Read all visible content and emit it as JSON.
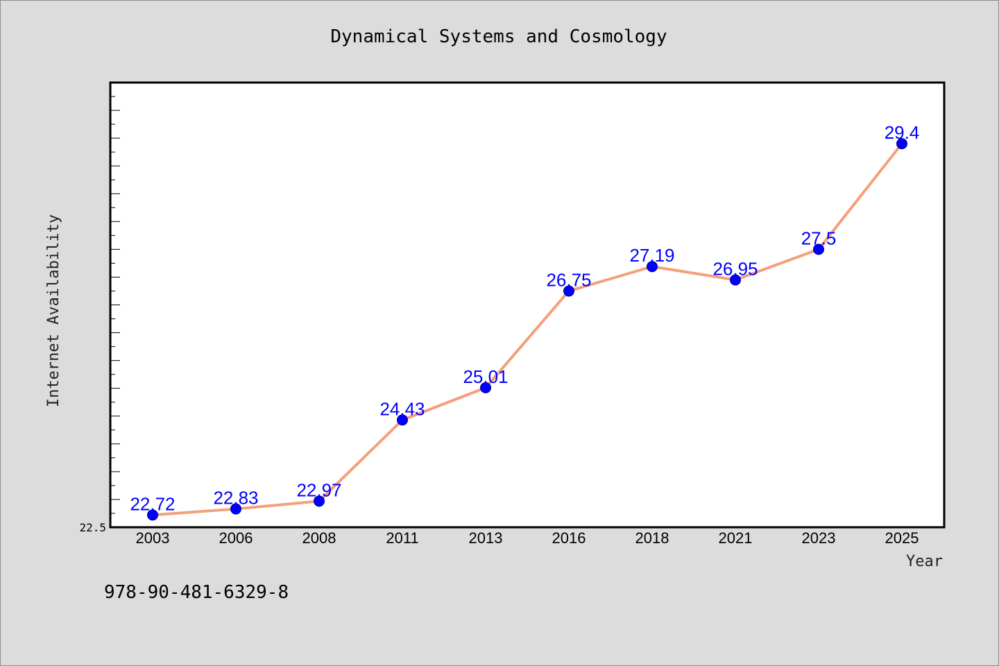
{
  "chart_data": {
    "type": "line",
    "title": "Dynamical Systems and Cosmology",
    "xlabel": "Year",
    "ylabel": "Internet Availability",
    "categories": [
      "2003",
      "2006",
      "2008",
      "2011",
      "2013",
      "2016",
      "2018",
      "2021",
      "2023",
      "2025"
    ],
    "values": [
      22.72,
      22.83,
      22.97,
      24.43,
      25.01,
      26.75,
      27.19,
      26.95,
      27.5,
      29.4
    ],
    "data_labels": [
      "22.72",
      "22.83",
      "22.97",
      "24.43",
      "25.01",
      "26.75",
      "27.19",
      "26.95",
      "27.5",
      "29.4"
    ],
    "ylim": [
      22.5,
      30.5
    ],
    "y_tick_label": "22.5",
    "grid": false,
    "line_color": "#f4a07a",
    "marker_color": "#0000ff",
    "label_color": "#0000ff"
  },
  "footer": {
    "isbn": "978-90-481-6329-8"
  }
}
